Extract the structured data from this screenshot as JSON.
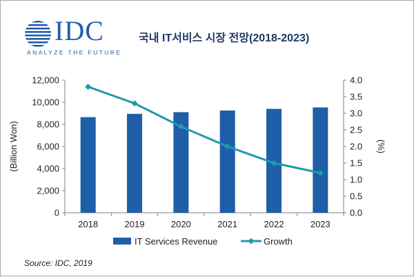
{
  "logo": {
    "brand": "IDC",
    "tagline": "ANALYZE THE FUTURE"
  },
  "title": "국내 IT서비스 시장 전망(2018-2023)",
  "source": "Source: IDC, 2019",
  "colors": {
    "bar": "#1f5ea8",
    "line": "#1e9aaa",
    "logo": "#1f5ea8",
    "title": "#1f3864"
  },
  "chart_data": {
    "type": "bar",
    "title": "국내 IT서비스 시장 전망(2018-2023)",
    "categories": [
      "2018",
      "2019",
      "2020",
      "2021",
      "2022",
      "2023"
    ],
    "series": [
      {
        "name": "IT Services Revenue",
        "type": "bar",
        "axis": "left",
        "values": [
          8650,
          8950,
          9100,
          9250,
          9400,
          9530
        ]
      },
      {
        "name": "Growth",
        "type": "line",
        "axis": "right",
        "values": [
          3.8,
          3.3,
          2.6,
          2.0,
          1.5,
          1.2
        ]
      }
    ],
    "ylabel": "(Billion Won)",
    "y2label": "(%)",
    "ylim": [
      0,
      12000
    ],
    "y2lim": [
      0,
      4.0
    ],
    "yticks": [
      "0",
      "2,000",
      "4,000",
      "6,000",
      "8,000",
      "10,000",
      "12,000"
    ],
    "y2ticks": [
      "0.0",
      "0.5",
      "1.0",
      "1.5",
      "2.0",
      "2.5",
      "3.0",
      "3.5",
      "4.0"
    ],
    "legend": [
      "IT Services Revenue",
      "Growth"
    ],
    "legend_position": "bottom",
    "grid": false
  }
}
